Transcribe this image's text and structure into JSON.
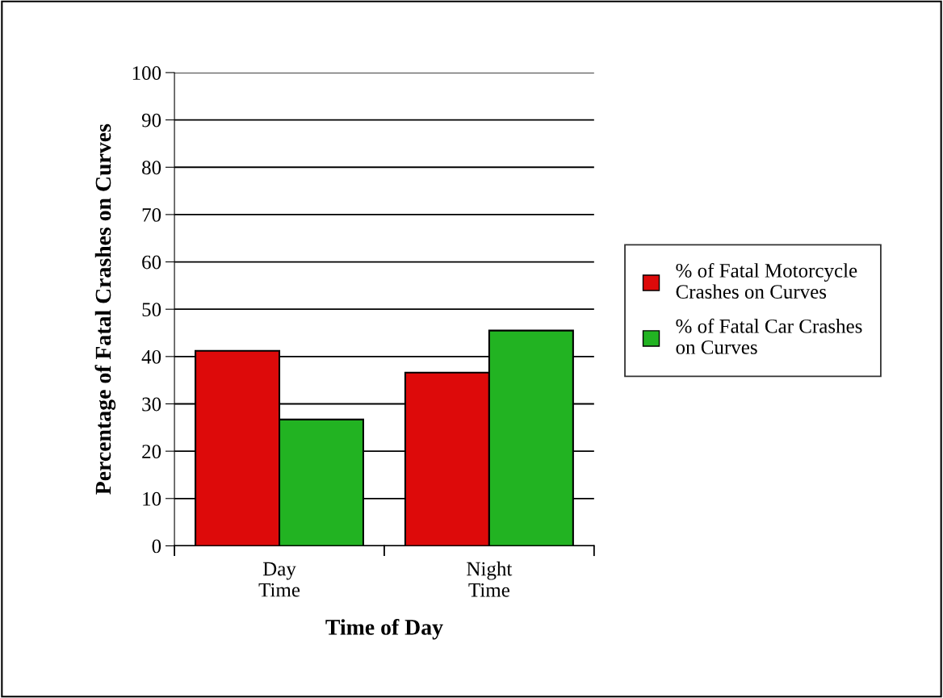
{
  "chart_data": {
    "type": "bar",
    "xlabel": "Time of Day",
    "ylabel": "Percentage of Fatal Crashes on Curves",
    "categories": [
      "Day\nTime",
      "Night\nTime"
    ],
    "series": [
      {
        "name": "% of Fatal Motorcycle\nCrashes on Curves",
        "color": "#dd0a0a",
        "values": [
          41.2,
          36.6
        ]
      },
      {
        "name": "% of Fatal Car Crashes\non Curves",
        "color": "#22b322",
        "values": [
          26.7,
          45.5
        ]
      }
    ],
    "ylim": [
      0,
      100
    ],
    "yticks": [
      0,
      10,
      20,
      30,
      40,
      50,
      60,
      70,
      80,
      90,
      100
    ],
    "grid": "y",
    "legend": "right"
  }
}
